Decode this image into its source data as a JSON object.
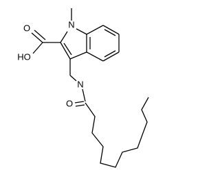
{
  "atoms": {
    "indole_n": "N",
    "acid_o": "O",
    "acid_oh": "HO",
    "amide_n": "N",
    "amide_o": "O"
  }
}
